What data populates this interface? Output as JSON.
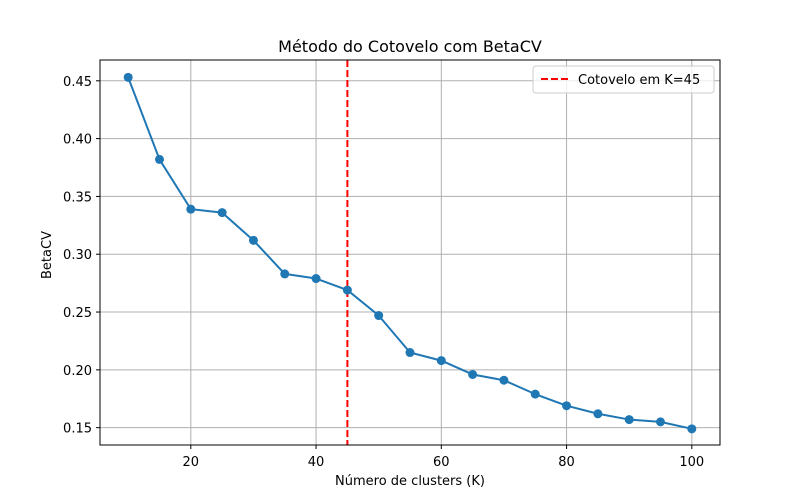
{
  "chart_data": {
    "type": "line",
    "title": "Método do Cotovelo com BetaCV",
    "xlabel": "Número de clusters (K)",
    "ylabel": "BetaCV",
    "xlim": [
      5.5,
      104.5
    ],
    "ylim": [
      0.135,
      0.468
    ],
    "xticks": [
      20,
      40,
      60,
      80,
      100
    ],
    "xtick_labels": [
      "20",
      "40",
      "60",
      "80",
      "100"
    ],
    "yticks": [
      0.15,
      0.2,
      0.25,
      0.3,
      0.35,
      0.4,
      0.45
    ],
    "ytick_labels": [
      "0.15",
      "0.20",
      "0.25",
      "0.30",
      "0.35",
      "0.40",
      "0.45"
    ],
    "grid": true,
    "legend_position": "top-right",
    "series": [
      {
        "marker": "circle",
        "color": "#1f77b4",
        "x": [
          10,
          15,
          20,
          25,
          30,
          35,
          40,
          45,
          50,
          55,
          60,
          65,
          70,
          75,
          80,
          85,
          90,
          95,
          100
        ],
        "y": [
          0.453,
          0.382,
          0.339,
          0.336,
          0.312,
          0.283,
          0.279,
          0.269,
          0.247,
          0.215,
          0.208,
          0.196,
          0.191,
          0.179,
          0.169,
          0.162,
          0.157,
          0.155,
          0.149
        ]
      }
    ],
    "vlines": [
      {
        "x": 45,
        "label": "Cotovelo em K=45",
        "color": "#ff0000",
        "style": "dashed"
      }
    ]
  }
}
